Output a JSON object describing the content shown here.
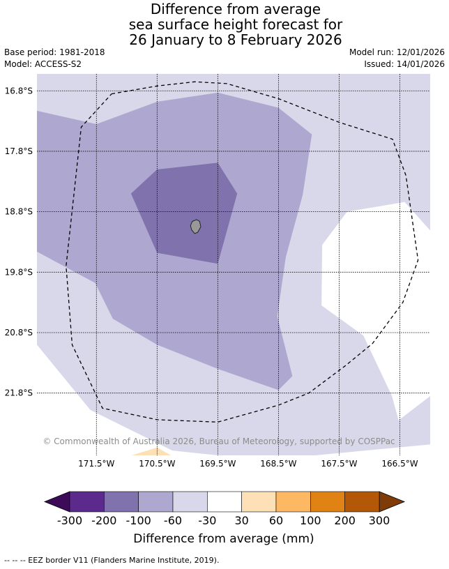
{
  "title_lines": [
    "Difference from average",
    "sea surface height forecast for",
    "26 January to 8 February 2026"
  ],
  "base_period": "Base period: 1981-2018",
  "model": "Model: ACCESS-S2",
  "model_run": "Model run: 12/01/2026",
  "issued": "Issued: 14/01/2026",
  "copyright": "© Commonwealth of Australia 2026, Bureau of Meteorology, supported by COSPPac",
  "footnote": "--  --  -- EEZ border V11 (Flanders Marine Institute, 2019).",
  "colors": {
    "lev_n300": "#3d0b57",
    "lev_n200": "#5b2a8c",
    "lev_n100": "#8073ad",
    "lev_n60": "#aea7d0",
    "lev_n30": "#d8d8ea",
    "lev_0": "#ffffff",
    "lev_30": "#fee0b6",
    "lev_60": "#fdb863",
    "lev_100": "#e08214",
    "lev_200": "#b35806",
    "lev_300": "#7f3b08",
    "land": "#999999"
  },
  "chart_data": {
    "type": "heatmap",
    "title": "Difference from average sea surface height forecast for 26 January to 8 February 2026",
    "x_axis": {
      "unit": "longitude",
      "ticks": [
        -171.5,
        -170.5,
        -169.5,
        -168.5,
        -167.5,
        -166.5
      ],
      "tick_labels": [
        "171.5°W",
        "170.5°W",
        "169.5°W",
        "168.5°W",
        "167.5°W",
        "166.5°W"
      ],
      "range": [
        -172.48,
        -166.0
      ]
    },
    "y_axis": {
      "unit": "latitude",
      "ticks": [
        -16.8,
        -17.8,
        -18.8,
        -19.8,
        -20.8,
        -21.8
      ],
      "tick_labels": [
        "16.8°S",
        "17.8°S",
        "18.8°S",
        "19.8°S",
        "20.8°S",
        "21.8°S"
      ],
      "range": [
        -22.83,
        -16.52
      ]
    },
    "grid": true,
    "colorbar": {
      "label": "Difference from average (mm)",
      "bounds": [
        -300,
        -200,
        -100,
        -60,
        -30,
        30,
        60,
        100,
        200,
        300
      ],
      "tick_labels": [
        "-300",
        "-200",
        "-100",
        "-60",
        "-30",
        "30",
        "60",
        "100",
        "200",
        "300"
      ],
      "extend": "both"
    },
    "regions": [
      {
        "level": "-60 to -30",
        "color_key": "lev_n30",
        "points": [
          [
            -172.48,
            -16.52
          ],
          [
            -166.0,
            -16.52
          ],
          [
            -166.0,
            -19.11
          ],
          [
            -166.42,
            -18.64
          ],
          [
            -167.37,
            -18.8
          ],
          [
            -167.78,
            -19.35
          ],
          [
            -167.79,
            -20.35
          ],
          [
            -167.1,
            -20.85
          ],
          [
            -166.63,
            -21.85
          ],
          [
            -166.52,
            -22.25
          ],
          [
            -166.0,
            -21.85
          ],
          [
            -166.0,
            -22.65
          ],
          [
            -167.9,
            -22.83
          ],
          [
            -169.5,
            -22.83
          ],
          [
            -170.25,
            -22.75
          ],
          [
            -171.6,
            -22.08
          ],
          [
            -172.48,
            -21.0
          ]
        ]
      },
      {
        "level": "-100 to -60",
        "color_key": "lev_n60",
        "points": [
          [
            -172.48,
            -17.13
          ],
          [
            -171.5,
            -17.35
          ],
          [
            -170.5,
            -16.98
          ],
          [
            -169.5,
            -16.83
          ],
          [
            -168.5,
            -17.08
          ],
          [
            -167.95,
            -17.52
          ],
          [
            -168.1,
            -18.52
          ],
          [
            -168.38,
            -19.55
          ],
          [
            -168.52,
            -20.53
          ],
          [
            -168.27,
            -21.52
          ],
          [
            -168.5,
            -21.75
          ],
          [
            -169.5,
            -21.4
          ],
          [
            -170.5,
            -21.0
          ],
          [
            -171.23,
            -20.57
          ],
          [
            -171.52,
            -19.98
          ],
          [
            -172.48,
            -19.46
          ]
        ]
      },
      {
        "level": "-200 to -100",
        "color_key": "lev_n100",
        "points": [
          [
            -170.93,
            -18.5
          ],
          [
            -170.5,
            -18.1
          ],
          [
            -169.5,
            -17.99
          ],
          [
            -169.18,
            -18.5
          ],
          [
            -169.5,
            -19.66
          ],
          [
            -170.5,
            -19.48
          ],
          [
            -170.93,
            -18.5
          ]
        ]
      },
      {
        "level": "30 to 60",
        "color_key": "lev_30",
        "points": [
          [
            -170.92,
            -22.83
          ],
          [
            -170.5,
            -22.7
          ],
          [
            -170.27,
            -22.83
          ]
        ]
      }
    ],
    "island": {
      "name": "Niue",
      "points": [
        [
          -169.92,
          -18.96
        ],
        [
          -169.85,
          -18.93
        ],
        [
          -169.8,
          -18.96
        ],
        [
          -169.78,
          -19.05
        ],
        [
          -169.83,
          -19.14
        ],
        [
          -169.88,
          -19.16
        ],
        [
          -169.93,
          -19.1
        ],
        [
          -169.95,
          -19.03
        ]
      ]
    },
    "eez_border": {
      "label": "EEZ border V11 (Flanders Marine Institute, 2019)",
      "points": [
        [
          -171.25,
          -16.85
        ],
        [
          -170.5,
          -16.72
        ],
        [
          -169.88,
          -16.65
        ],
        [
          -169.35,
          -16.68
        ],
        [
          -168.5,
          -16.93
        ],
        [
          -167.5,
          -17.32
        ],
        [
          -166.62,
          -17.6
        ],
        [
          -166.4,
          -18.2
        ],
        [
          -166.2,
          -19.6
        ],
        [
          -166.45,
          -20.3
        ],
        [
          -166.95,
          -20.98
        ],
        [
          -167.4,
          -21.35
        ],
        [
          -168.0,
          -21.8
        ],
        [
          -168.5,
          -22.0
        ],
        [
          -169.5,
          -22.28
        ],
        [
          -170.5,
          -22.24
        ],
        [
          -171.4,
          -22.05
        ],
        [
          -171.9,
          -21.0
        ],
        [
          -172.0,
          -19.7
        ],
        [
          -171.75,
          -17.4
        ],
        [
          -171.25,
          -16.85
        ]
      ]
    }
  }
}
